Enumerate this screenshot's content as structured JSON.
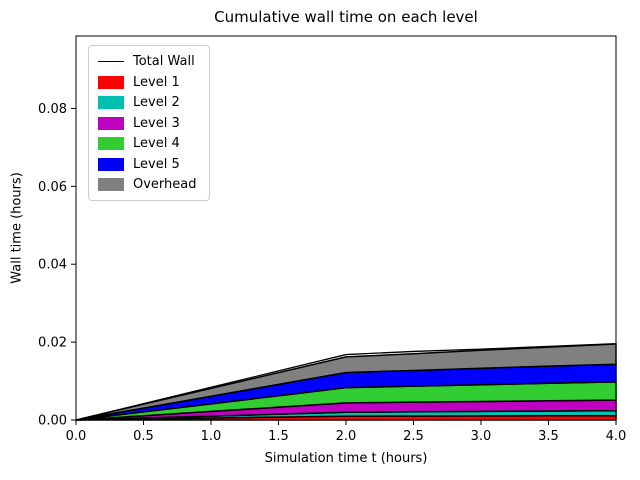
{
  "chart_data": {
    "type": "area",
    "title": "Cumulative wall time on each level",
    "xlabel": "Simulation time t (hours)",
    "ylabel": "Wall time (hours)",
    "x": [
      0,
      0.5,
      1.0,
      1.5,
      2.0,
      2.5,
      3.0,
      3.5,
      4.0
    ],
    "series": [
      {
        "name": "Level 1",
        "color": "#ff0000",
        "values": [
          0,
          0.00025,
          0.0005,
          0.00075,
          0.001,
          0.00103,
          0.00105,
          0.00108,
          0.0011
        ]
      },
      {
        "name": "Level 2",
        "color": "#00bfb0",
        "values": [
          0,
          0.00025,
          0.0005,
          0.00075,
          0.001,
          0.00108,
          0.00115,
          0.00123,
          0.0013
        ]
      },
      {
        "name": "Level 3",
        "color": "#c000c0",
        "values": [
          0,
          0.0006,
          0.0012,
          0.0018,
          0.0024,
          0.00248,
          0.00255,
          0.00263,
          0.0027
        ]
      },
      {
        "name": "Level 4",
        "color": "#32cd32",
        "values": [
          0,
          0.00098,
          0.00195,
          0.00293,
          0.0039,
          0.0041,
          0.0043,
          0.0045,
          0.0047
        ]
      },
      {
        "name": "Level 5",
        "color": "#0000ff",
        "values": [
          0,
          0.00098,
          0.00195,
          0.00293,
          0.0039,
          0.00403,
          0.00425,
          0.00438,
          0.0045
        ]
      },
      {
        "name": "Overhead",
        "color": "#808080",
        "values": [
          0,
          0.001,
          0.002,
          0.003,
          0.004,
          0.0043,
          0.0046,
          0.0049,
          0.0052
        ]
      }
    ],
    "line_series": {
      "name": "Total Wall",
      "color": "#000000",
      "values": [
        0,
        0.0042,
        0.0084,
        0.0126,
        0.0168,
        0.0176,
        0.0182,
        0.0189,
        0.0196
      ]
    },
    "stack_edge_color": "#000000",
    "xlim": [
      0,
      4
    ],
    "ylim": [
      0,
      0.0986
    ],
    "x_ticks": [
      0,
      0.5,
      1.0,
      1.5,
      2.0,
      2.5,
      3.0,
      3.5,
      4.0
    ],
    "x_tick_labels": [
      "0.0",
      "0.5",
      "1.0",
      "1.5",
      "2.0",
      "2.5",
      "3.0",
      "3.5",
      "4.0"
    ],
    "y_ticks": [
      0,
      0.02,
      0.04,
      0.06,
      0.08
    ],
    "y_tick_labels": [
      "0.00",
      "0.02",
      "0.04",
      "0.06",
      "0.08"
    ],
    "grid": false,
    "legend": {
      "position": "upper left",
      "entries": [
        {
          "label": "Total Wall",
          "type": "line",
          "color": "#000000"
        },
        {
          "label": "Level 1",
          "type": "patch",
          "color": "#ff0000"
        },
        {
          "label": "Level 2",
          "type": "patch",
          "color": "#00bfb0"
        },
        {
          "label": "Level 3",
          "type": "patch",
          "color": "#c000c0"
        },
        {
          "label": "Level 4",
          "type": "patch",
          "color": "#32cd32"
        },
        {
          "label": "Level 5",
          "type": "patch",
          "color": "#0000ff"
        },
        {
          "label": "Overhead",
          "type": "patch",
          "color": "#808080"
        }
      ]
    }
  }
}
